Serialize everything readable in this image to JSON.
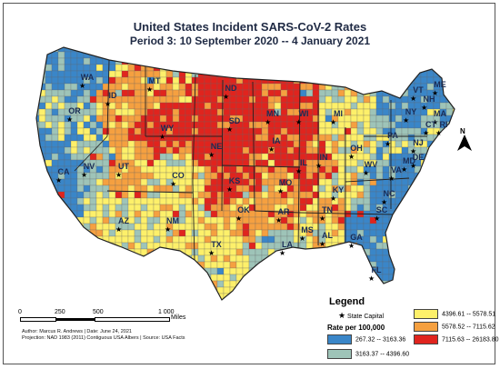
{
  "title": "United States Incident SARS-CoV-2 Rates",
  "subtitle": "Period 3:  10 September 2020  --  4 January 2021",
  "legend": {
    "title": "Legend",
    "capital_label": "State Capital",
    "rate_title": "Rate per 100,000",
    "classes": [
      {
        "label": "267.32 -- 3163.36",
        "color": "#3a86c8"
      },
      {
        "label": "3163.37 -- 4396.60",
        "color": "#9ec4b8"
      },
      {
        "label": "4396.61  --  5578.51",
        "color": "#fdf06a"
      },
      {
        "label": "5578.52  --  7115.62",
        "color": "#f5a040"
      },
      {
        "label": "7115.63 -- 26183.80",
        "color": "#e0241e"
      }
    ]
  },
  "scale": {
    "ticks": [
      "0",
      "250",
      "500",
      "1 000"
    ],
    "unit": "Miles"
  },
  "credits": {
    "line1": "Author: Marcus R. Andrews | Date: June 24, 2021",
    "line2": "Projection: NAD 1983 (2011) Contiguous USA Albers  |  Source: USA Facts"
  },
  "north_label": "N",
  "state_labels": [
    {
      "abbr": "WA",
      "cls": 0
    },
    {
      "abbr": "OR",
      "cls": 1
    },
    {
      "abbr": "ID",
      "cls": 3
    },
    {
      "abbr": "CA",
      "cls": 0
    },
    {
      "abbr": "NV",
      "cls": 1
    },
    {
      "abbr": "UT",
      "cls": 3
    },
    {
      "abbr": "AZ",
      "cls": 2
    },
    {
      "abbr": "MT",
      "cls": 3
    },
    {
      "abbr": "WY",
      "cls": 4
    },
    {
      "abbr": "CO",
      "cls": 2
    },
    {
      "abbr": "NM",
      "cls": 2
    },
    {
      "abbr": "ND",
      "cls": 4
    },
    {
      "abbr": "SD",
      "cls": 4
    },
    {
      "abbr": "NE",
      "cls": 4
    },
    {
      "abbr": "KS",
      "cls": 4
    },
    {
      "abbr": "OK",
      "cls": 3
    },
    {
      "abbr": "TX",
      "cls": 2
    },
    {
      "abbr": "MN",
      "cls": 4
    },
    {
      "abbr": "IA",
      "cls": 4
    },
    {
      "abbr": "MO",
      "cls": 3
    },
    {
      "abbr": "AR",
      "cls": 3
    },
    {
      "abbr": "LA",
      "cls": 1
    },
    {
      "abbr": "WI",
      "cls": 4
    },
    {
      "abbr": "IL",
      "cls": 4
    },
    {
      "abbr": "MS",
      "cls": 2
    },
    {
      "abbr": "MI",
      "cls": 2
    },
    {
      "abbr": "IN",
      "cls": 3
    },
    {
      "abbr": "KY",
      "cls": 2
    },
    {
      "abbr": "TN",
      "cls": 3
    },
    {
      "abbr": "AL",
      "cls": 2
    },
    {
      "abbr": "OH",
      "cls": 2
    },
    {
      "abbr": "GA",
      "cls": 0
    },
    {
      "abbr": "FL",
      "cls": 0
    },
    {
      "abbr": "SC",
      "cls": 0
    },
    {
      "abbr": "NC",
      "cls": 0
    },
    {
      "abbr": "VA",
      "cls": 0
    },
    {
      "abbr": "WV",
      "cls": 1
    },
    {
      "abbr": "PA",
      "cls": 1
    },
    {
      "abbr": "NY",
      "cls": 0
    },
    {
      "abbr": "NJ",
      "cls": 1
    },
    {
      "abbr": "DE",
      "cls": 1
    },
    {
      "abbr": "MD",
      "cls": 0
    },
    {
      "abbr": "VT",
      "cls": 0
    },
    {
      "abbr": "NH",
      "cls": 0
    },
    {
      "abbr": "ME",
      "cls": 0
    },
    {
      "abbr": "MA",
      "cls": 1
    },
    {
      "abbr": "RI",
      "cls": 1
    },
    {
      "abbr": "CT",
      "cls": 1
    }
  ]
}
